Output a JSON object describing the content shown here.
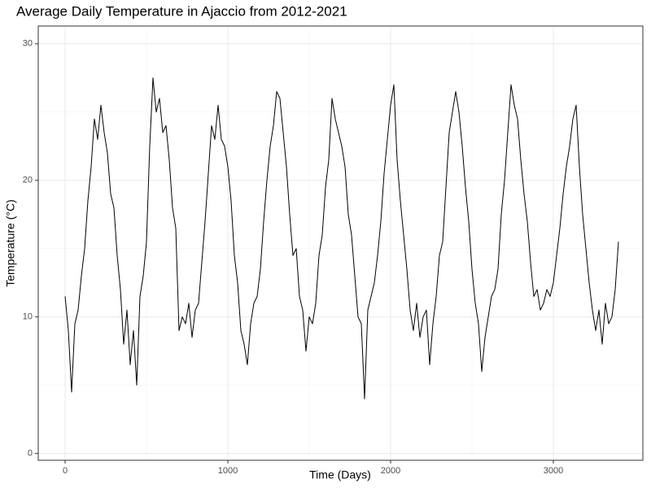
{
  "chart_data": {
    "type": "line",
    "title": "Average Daily Temperature in Ajaccio from 2012-2021",
    "x_label": "Time (Days)",
    "y_label": "Temperature (°C)",
    "x": [
      0,
      20,
      40,
      60,
      80,
      100,
      120,
      140,
      160,
      180,
      200,
      220,
      240,
      260,
      280,
      300,
      320,
      340,
      360,
      380,
      400,
      420,
      440,
      460,
      480,
      500,
      520,
      540,
      560,
      580,
      600,
      620,
      640,
      660,
      680,
      700,
      720,
      740,
      760,
      780,
      800,
      820,
      840,
      860,
      880,
      900,
      920,
      940,
      960,
      980,
      1000,
      1020,
      1040,
      1060,
      1080,
      1100,
      1120,
      1140,
      1160,
      1180,
      1200,
      1220,
      1240,
      1260,
      1280,
      1300,
      1320,
      1340,
      1360,
      1380,
      1400,
      1420,
      1440,
      1460,
      1480,
      1500,
      1520,
      1540,
      1560,
      1580,
      1600,
      1620,
      1640,
      1660,
      1680,
      1700,
      1720,
      1740,
      1760,
      1780,
      1800,
      1820,
      1840,
      1860,
      1880,
      1900,
      1920,
      1940,
      1960,
      1980,
      2000,
      2020,
      2040,
      2060,
      2080,
      2100,
      2120,
      2140,
      2160,
      2180,
      2200,
      2220,
      2240,
      2260,
      2280,
      2300,
      2320,
      2340,
      2360,
      2380,
      2400,
      2420,
      2440,
      2460,
      2480,
      2500,
      2520,
      2540,
      2560,
      2580,
      2600,
      2620,
      2640,
      2660,
      2680,
      2700,
      2720,
      2740,
      2760,
      2780,
      2800,
      2820,
      2840,
      2860,
      2880,
      2900,
      2920,
      2940,
      2960,
      2980,
      3000,
      3020,
      3040,
      3060,
      3080,
      3100,
      3120,
      3140,
      3160,
      3180,
      3200,
      3220,
      3240,
      3260,
      3280,
      3300,
      3320,
      3340,
      3360,
      3380,
      3400
    ],
    "series": [
      {
        "color": "#000000",
        "values": [
          11.5,
          9.0,
          4.5,
          9.5,
          10.5,
          13.0,
          15.0,
          18.5,
          21.0,
          24.5,
          23.0,
          25.5,
          23.5,
          22.0,
          19.0,
          18.0,
          14.5,
          12.0,
          8.0,
          10.5,
          6.5,
          9.0,
          5.0,
          11.5,
          13.0,
          15.5,
          22.5,
          27.5,
          25.0,
          26.0,
          23.5,
          24.0,
          21.5,
          18.0,
          16.5,
          9.0,
          10.0,
          9.5,
          11.0,
          8.5,
          10.5,
          11.0,
          14.0,
          17.0,
          20.5,
          24.0,
          23.0,
          25.5,
          23.0,
          22.5,
          21.0,
          18.5,
          14.5,
          12.5,
          9.0,
          8.0,
          6.5,
          9.5,
          11.0,
          11.5,
          13.5,
          17.0,
          20.0,
          22.5,
          24.0,
          26.5,
          26.0,
          23.5,
          21.0,
          17.5,
          14.5,
          15.0,
          11.5,
          10.5,
          7.5,
          10.0,
          9.5,
          11.0,
          14.5,
          16.0,
          19.5,
          21.5,
          26.0,
          24.5,
          23.5,
          22.5,
          21.0,
          17.5,
          16.0,
          13.0,
          10.0,
          9.5,
          4.0,
          10.5,
          11.5,
          12.5,
          14.5,
          17.0,
          20.5,
          23.0,
          25.5,
          27.0,
          21.5,
          18.5,
          16.0,
          13.5,
          10.5,
          9.0,
          11.0,
          8.5,
          10.0,
          10.5,
          6.5,
          9.5,
          11.5,
          14.5,
          15.5,
          19.5,
          23.5,
          25.0,
          26.5,
          25.0,
          22.5,
          19.5,
          17.0,
          13.5,
          11.0,
          9.5,
          6.0,
          8.5,
          10.0,
          11.5,
          12.0,
          13.5,
          17.5,
          20.0,
          23.5,
          27.0,
          25.5,
          24.5,
          21.5,
          19.0,
          17.0,
          14.0,
          11.5,
          12.0,
          10.5,
          11.0,
          12.0,
          11.5,
          12.5,
          14.5,
          16.5,
          19.0,
          21.0,
          22.5,
          24.5,
          25.5,
          21.0,
          17.5,
          15.0,
          12.5,
          10.5,
          9.0,
          10.5,
          8.0,
          11.0,
          9.5,
          10.0,
          12.0,
          15.5
        ]
      }
    ],
    "xlim": [
      -165,
      3550
    ],
    "ylim": [
      -0.5,
      31.3
    ],
    "xticks": [
      0,
      1000,
      2000,
      3000
    ],
    "yticks": [
      0,
      10,
      20,
      30
    ],
    "grid": true
  }
}
